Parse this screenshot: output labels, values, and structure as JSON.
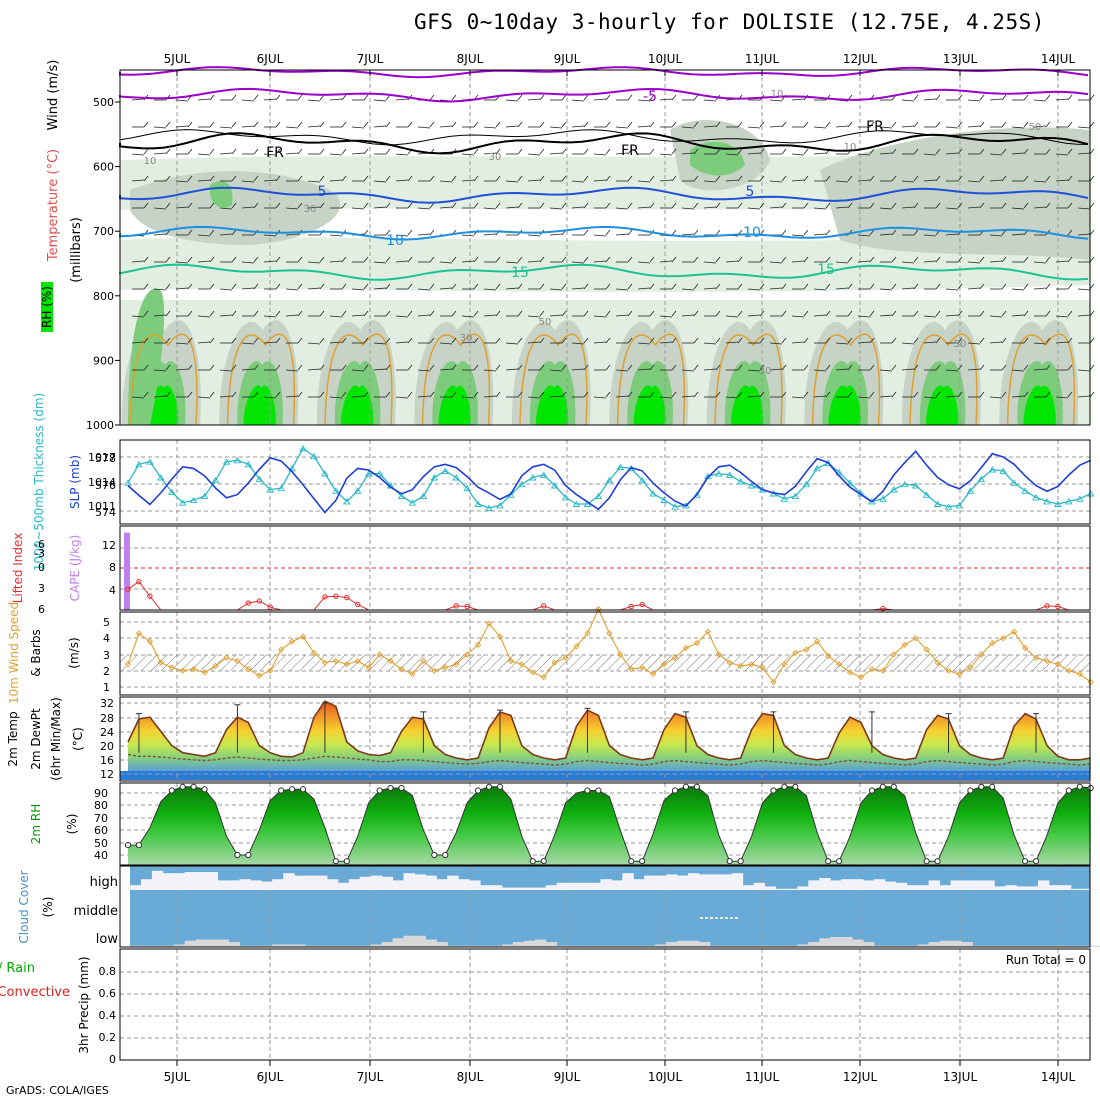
{
  "title": "GFS 0~10day 3-hourly for DOLISIE (12.75E, 4.25S)",
  "footer": "GrADS: COLA/IGES",
  "colors": {
    "rh_light": "#e3eee3",
    "rh_mid": "#c6d3c6",
    "rh_dark": "#7ccc7c",
    "rh_bright": "#00e600",
    "temp_purple": "#9900cc",
    "temp_black": "#000000",
    "temp_blue": "#1f4fd8",
    "temp_cyan": "#1e90e0",
    "temp_green": "#19c38f",
    "temp_orange": "#e0a030",
    "slp": "#1e3ed6",
    "thickness": "#29b8c8",
    "cape": "#c080f0",
    "lifted_index": "#e03030",
    "wind10m": "#e0a030",
    "cloud": "#6aaad6",
    "cloud_gap": "#f2f2f8",
    "rh2m_dark": "#0a8a0a",
    "rh2m_light": "#9fd09f",
    "precip_rain": "#00aa00",
    "precip_conv": "#e02020"
  },
  "x_axis": {
    "labels": [
      "5JUL",
      "6JUL",
      "7JUL",
      "8JUL",
      "9JUL",
      "10JUL",
      "11JUL",
      "12JUL",
      "13JUL",
      "14JUL"
    ]
  },
  "panels": {
    "upper_air": {
      "ylabels": [
        "Wind (m/s)",
        "Temperature (°C)",
        "RH (%)",
        "(millibars)"
      ],
      "ticks": [
        "500",
        "600",
        "700",
        "800",
        "900",
        "1000"
      ],
      "contour_labels": {
        "purple": "-5",
        "black": "FR",
        "blue": "5",
        "cyan": "10",
        "green": "15",
        "rh": [
          "10",
          "30",
          "50"
        ]
      }
    },
    "slp": {
      "ylabels": [
        "1000~500mb Thickness (dm)",
        "SLP (mb)"
      ],
      "left_ticks": [
        "578",
        "576",
        "574"
      ],
      "right_ticks": [
        "1017",
        "1014",
        "1011"
      ]
    },
    "cape": {
      "ylabels": [
        "Lifted Index",
        "CAPE (J/kg)"
      ],
      "left_ticks": [
        "-6",
        "-3",
        "0",
        "3",
        "6"
      ],
      "right_ticks": [
        "12",
        "8",
        "4"
      ]
    },
    "wind10m": {
      "ylabels": [
        "10m Wind Speed",
        "& Barbs",
        "(m/s)"
      ],
      "ticks": [
        "5",
        "4",
        "3",
        "2",
        "1"
      ]
    },
    "temp2m": {
      "ylabels": [
        "2m Temp",
        "2m DewPt",
        "(6hr Min/Max)",
        "(°C)"
      ],
      "ticks": [
        "32",
        "28",
        "24",
        "20",
        "16",
        "12"
      ]
    },
    "rh2m": {
      "ylabels": [
        "2m RH",
        "(%)"
      ],
      "ticks": [
        "90",
        "80",
        "70",
        "60",
        "50",
        "40"
      ]
    },
    "cloud": {
      "ylabels": [
        "Cloud Cover",
        "(%)"
      ],
      "levels": [
        "high",
        "middle",
        "low"
      ]
    },
    "precip": {
      "ylabels": [
        "Total / Rain",
        "Convective",
        "3hr Precip (mm)"
      ],
      "ticks": [
        "0.8",
        "0.6",
        "0.4",
        "0.2",
        "0"
      ],
      "run_total": "Run Total = 0"
    }
  },
  "chart_data": {
    "type": "line",
    "x_unit": "forecast step (3-hourly), 04 JUL 12Z to 14 JUL 06Z",
    "slp_mb": [
      1013.5,
      1012.3,
      1011.2,
      1012.6,
      1014.3,
      1015.8,
      1015.6,
      1014.7,
      1013.2,
      1012.0,
      1012.4,
      1013.8,
      1015.5,
      1016.9,
      1016.5,
      1015.2,
      1013.6,
      1011.9,
      1010.2,
      1011.7,
      1014.4,
      1015.6,
      1015.4,
      1014.5,
      1013.3,
      1012.5,
      1013.0,
      1014.6,
      1015.8,
      1016.1,
      1015.7,
      1014.6,
      1013.3,
      1012.6,
      1011.8,
      1012.5,
      1014.7,
      1015.8,
      1016.1,
      1015.4,
      1013.5,
      1012.4,
      1011.5,
      1010.6,
      1012.0,
      1014.2,
      1015.7,
      1015.3,
      1013.8,
      1012.6,
      1011.6,
      1011.0,
      1012.4,
      1014.5,
      1015.8,
      1016.0,
      1015.1,
      1014.0,
      1013.0,
      1012.6,
      1012.4,
      1013.4,
      1015.2,
      1016.8,
      1016.3,
      1014.7,
      1013.3,
      1012.4,
      1011.5,
      1012.8,
      1014.8,
      1016.3,
      1017.7,
      1016.0,
      1014.5,
      1013.6,
      1013.1,
      1014.1,
      1015.7,
      1017.4,
      1017.0,
      1016.1,
      1014.7,
      1013.5,
      1012.8,
      1013.4,
      1014.8,
      1016.0,
      1016.6
    ],
    "thickness_dm": [
      576.2,
      577.6,
      577.8,
      576.6,
      575.5,
      574.7,
      574.9,
      575.2,
      576.4,
      577.8,
      577.9,
      577.6,
      576.5,
      575.7,
      575.8,
      577.3,
      578.8,
      578.2,
      576.9,
      575.6,
      574.8,
      575.6,
      576.9,
      576.9,
      576.0,
      575.2,
      574.7,
      575.2,
      576.6,
      577.1,
      576.6,
      575.8,
      574.6,
      574.3,
      574.5,
      575.3,
      576.1,
      576.6,
      576.8,
      576.0,
      575.1,
      574.6,
      574.6,
      575.2,
      576.4,
      577.4,
      577.3,
      576.4,
      575.4,
      574.9,
      574.4,
      574.5,
      575.3,
      576.7,
      576.9,
      576.8,
      576.3,
      576.0,
      575.7,
      575.4,
      575.0,
      575.2,
      576.1,
      577.3,
      577.7,
      577.0,
      576.2,
      575.4,
      574.8,
      575.0,
      575.7,
      576.1,
      576.0,
      575.3,
      574.6,
      574.4,
      574.5,
      575.6,
      576.5,
      577.2,
      577.1,
      576.2,
      575.6,
      575.1,
      574.8,
      574.6,
      574.8,
      575.0,
      575.4
    ],
    "lifted_index": [
      3.0,
      1.9,
      4.0,
      6,
      6,
      6,
      6,
      6,
      6,
      6,
      6,
      5.0,
      4.7,
      5.6,
      6,
      6,
      6,
      6,
      4.1,
      4.0,
      4.2,
      5.2,
      6,
      6,
      6,
      6,
      6,
      6,
      6,
      6,
      5.4,
      5.5,
      6,
      6,
      6,
      6,
      6,
      6,
      5.4,
      6,
      6,
      6,
      6,
      6,
      6,
      6,
      5.5,
      5.2,
      6,
      6,
      6,
      6,
      6,
      6,
      6,
      6,
      6,
      6,
      6,
      6,
      6,
      6,
      6,
      6,
      6,
      6,
      6,
      6,
      6,
      5.8,
      6,
      6,
      6,
      6,
      6,
      6,
      6,
      6,
      6,
      6,
      6,
      6,
      6,
      6,
      5.4,
      5.5,
      6,
      6,
      6
    ],
    "cape_jkg": [
      14.5
    ],
    "wind10m_ms": [
      2.4,
      4.3,
      3.8,
      2.5,
      2.2,
      2.0,
      2.1,
      1.9,
      2.3,
      2.8,
      2.6,
      2.1,
      1.7,
      2.0,
      3.3,
      3.8,
      4.1,
      3.1,
      2.5,
      2.6,
      2.4,
      2.6,
      2.2,
      3.0,
      2.6,
      2.1,
      1.8,
      2.6,
      2.0,
      2.2,
      2.4,
      3.0,
      3.6,
      4.9,
      4.1,
      2.6,
      2.4,
      1.9,
      1.6,
      2.5,
      2.8,
      3.5,
      4.3,
      5.8,
      4.3,
      3.0,
      2.1,
      2.2,
      1.8,
      2.4,
      2.8,
      3.4,
      3.7,
      4.4,
      3.0,
      2.5,
      2.3,
      2.4,
      2.2,
      1.3,
      2.4,
      3.1,
      3.3,
      3.8,
      2.9,
      2.4,
      1.9,
      1.6,
      2.1,
      2.0,
      3.0,
      3.6,
      4.0,
      3.3,
      2.5,
      2.0,
      1.8,
      2.2,
      3.0,
      3.7,
      4.0,
      4.4,
      3.4,
      2.8,
      2.6,
      2.4,
      2.0,
      1.8,
      1.3
    ],
    "temp2m_c": [
      21.0,
      27.5,
      28.0,
      24.0,
      20.0,
      18.0,
      17.5,
      17.0,
      18.0,
      24.5,
      28.0,
      26.5,
      20.0,
      18.0,
      17.0,
      16.8,
      18.0,
      28.0,
      32.5,
      31.0,
      21.0,
      18.5,
      17.5,
      17.2,
      18.0,
      24.0,
      28.0,
      27.5,
      20.0,
      17.5,
      16.5,
      16.0,
      16.5,
      25.0,
      29.5,
      28.5,
      20.0,
      17.5,
      16.5,
      16.0,
      16.5,
      25.5,
      30.0,
      28.5,
      20.0,
      17.5,
      16.5,
      16.0,
      16.5,
      24.5,
      29.0,
      28.0,
      20.0,
      17.5,
      16.5,
      16.0,
      16.5,
      24.5,
      29.0,
      28.5,
      20.0,
      17.5,
      16.5,
      16.0,
      16.5,
      23.5,
      28.0,
      26.5,
      20.0,
      17.5,
      16.5,
      16.0,
      16.5,
      24.5,
      28.5,
      27.5,
      20.0,
      17.5,
      16.5,
      16.0,
      16.5,
      25.5,
      29.0,
      27.5,
      20.0,
      17.0,
      16.0,
      16.0,
      16.5
    ],
    "dewpt2m_c": [
      17.5,
      17.0,
      17.0,
      16.8,
      16.5,
      16.2,
      16.0,
      15.8,
      16.0,
      16.5,
      16.8,
      16.5,
      16.2,
      16.0,
      15.8,
      15.8,
      16.0,
      16.5,
      17.0,
      16.8,
      16.5,
      16.2,
      16.0,
      15.5,
      15.5,
      16.0,
      16.0,
      15.8,
      15.5,
      15.2,
      15.0,
      14.8,
      15.0,
      15.5,
      15.8,
      15.5,
      15.2,
      15.0,
      14.8,
      14.5,
      14.8,
      15.5,
      15.8,
      15.5,
      15.2,
      15.0,
      14.8,
      14.5,
      14.8,
      15.5,
      15.8,
      15.5,
      15.2,
      15.0,
      14.8,
      14.5,
      14.8,
      15.5,
      15.8,
      15.5,
      15.2,
      15.0,
      14.8,
      14.5,
      14.8,
      15.5,
      15.8,
      15.5,
      15.2,
      15.0,
      14.8,
      14.5,
      14.8,
      15.5,
      15.8,
      15.5,
      15.2,
      15.0,
      14.8,
      14.5,
      14.8,
      15.5,
      15.8,
      15.5,
      15.2,
      15.0,
      14.8,
      14.5,
      14.8
    ],
    "tmax6h_c": [
      null,
      29.0,
      null,
      null,
      null,
      null,
      null,
      null,
      null,
      null,
      31.5,
      null,
      null,
      null,
      null,
      null,
      null,
      null,
      32.0,
      null,
      null,
      null,
      null,
      null,
      null,
      null,
      null,
      29.5,
      null,
      null,
      null,
      null,
      null,
      null,
      30.0,
      null,
      null,
      null,
      null,
      null,
      null,
      null,
      30.5,
      null,
      null,
      null,
      null,
      null,
      null,
      null,
      null,
      29.5,
      null,
      null,
      null,
      null,
      null,
      null,
      null,
      29.5,
      null,
      null,
      null,
      null,
      null,
      null,
      null,
      null,
      29.5,
      null,
      null,
      null,
      null,
      null,
      null,
      29.0,
      null,
      null,
      null,
      null,
      null,
      null,
      null,
      29.0,
      null,
      null,
      null,
      null
    ],
    "rh2m_pct": [
      48,
      48,
      62,
      83,
      92,
      95,
      95,
      93,
      82,
      55,
      40,
      40,
      60,
      84,
      92,
      93,
      93,
      85,
      62,
      35,
      35,
      55,
      82,
      92,
      94,
      94,
      88,
      60,
      40,
      40,
      58,
      82,
      92,
      95,
      95,
      85,
      55,
      35,
      35,
      56,
      82,
      90,
      92,
      92,
      87,
      60,
      35,
      35,
      57,
      84,
      92,
      95,
      95,
      88,
      56,
      35,
      35,
      55,
      82,
      92,
      95,
      95,
      88,
      58,
      35,
      35,
      55,
      82,
      92,
      95,
      95,
      88,
      58,
      35,
      35,
      55,
      82,
      92,
      95,
      95,
      86,
      56,
      35,
      35,
      56,
      82,
      92,
      95,
      94
    ],
    "cloud_high_pct": [
      80,
      55,
      20,
      30,
      30,
      25,
      25,
      25,
      60,
      60,
      55,
      60,
      65,
      55,
      30,
      40,
      40,
      40,
      55,
      70,
      55,
      45,
      40,
      45,
      60,
      30,
      35,
      40,
      55,
      40,
      55,
      60,
      80,
      80,
      90,
      90,
      90,
      90,
      80,
      70,
      70,
      70,
      70,
      55,
      60,
      30,
      55,
      40,
      40,
      35,
      40,
      30,
      35,
      35,
      35,
      30,
      80,
      70,
      85,
      95,
      95,
      85,
      60,
      50,
      60,
      55,
      55,
      60,
      55,
      65,
      70,
      80,
      80,
      60,
      80,
      60,
      60,
      60,
      60,
      85,
      80,
      85,
      85,
      60,
      80,
      80,
      95,
      95,
      95
    ],
    "cloud_mid_pct": [
      0
    ],
    "cloud_low_pct": [
      5,
      5,
      5,
      5,
      10,
      25,
      30,
      30,
      30,
      20,
      5,
      5,
      5,
      10,
      10,
      10,
      5,
      5,
      5,
      5,
      5,
      5,
      10,
      20,
      35,
      45,
      45,
      30,
      20,
      5,
      5,
      5,
      5,
      5,
      10,
      20,
      25,
      30,
      20,
      5,
      5,
      5,
      5,
      5,
      5,
      5,
      5,
      5,
      10,
      20,
      25,
      25,
      20,
      5,
      5,
      5,
      5,
      5,
      5,
      5,
      5,
      10,
      20,
      35,
      40,
      40,
      30,
      20,
      5,
      5,
      5,
      5,
      10,
      20,
      25,
      25,
      20,
      5,
      5,
      5,
      5,
      5,
      5,
      5,
      5,
      5,
      5,
      5,
      5
    ],
    "precip_3hr_mm": [
      0
    ]
  }
}
